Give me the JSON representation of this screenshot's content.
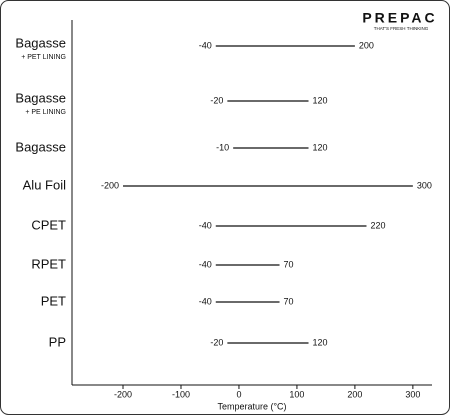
{
  "chart_data": {
    "type": "range",
    "categories": [
      "Bagasse",
      "Bagasse",
      "Bagasse",
      "Alu Foil",
      "CPET",
      "RPET",
      "PET",
      "PP"
    ],
    "sublabels": [
      "+ PET LINING",
      "+ PE LINING",
      null,
      null,
      null,
      null,
      null,
      null
    ],
    "low": [
      -40,
      -20,
      -10,
      -200,
      -40,
      -40,
      -40,
      -20
    ],
    "high": [
      200,
      120,
      120,
      300,
      220,
      70,
      70,
      120
    ],
    "color": "#111111",
    "xlabel": "Temperature (°C)",
    "xlim": [
      -288,
      333
    ],
    "xticks": [
      -200,
      -100,
      0,
      100,
      200,
      300
    ]
  },
  "logo": {
    "name": "PREPAC",
    "tagline": "THAT'S FRESH THINKING"
  }
}
